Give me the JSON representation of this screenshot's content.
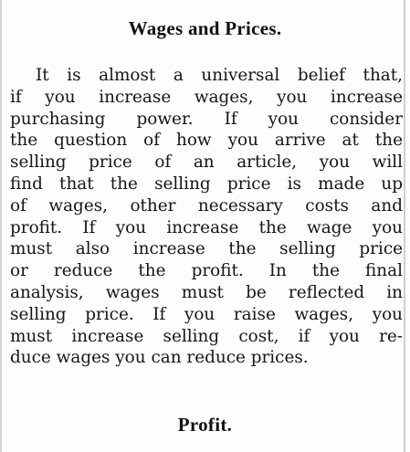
{
  "article": {
    "heading": "Wages and Prices.",
    "lines": [
      "It is almost a universal belief that,",
      "if you increase wages, you increase",
      "purchasing power. If you consider",
      "the question of how you arrive at the",
      "selling price of an article, you will",
      "find that the selling price is made up",
      "of wages, other necessary costs and",
      "profit. If you increase the wage you",
      "must also increase the selling price",
      "or reduce the profit. In the final",
      "analysis, wages must be reflected in",
      "selling price. If you raise wages, you",
      "must increase selling cost, if you re-",
      "duce wages you can reduce prices."
    ]
  },
  "next_section": {
    "heading": "Profit."
  }
}
